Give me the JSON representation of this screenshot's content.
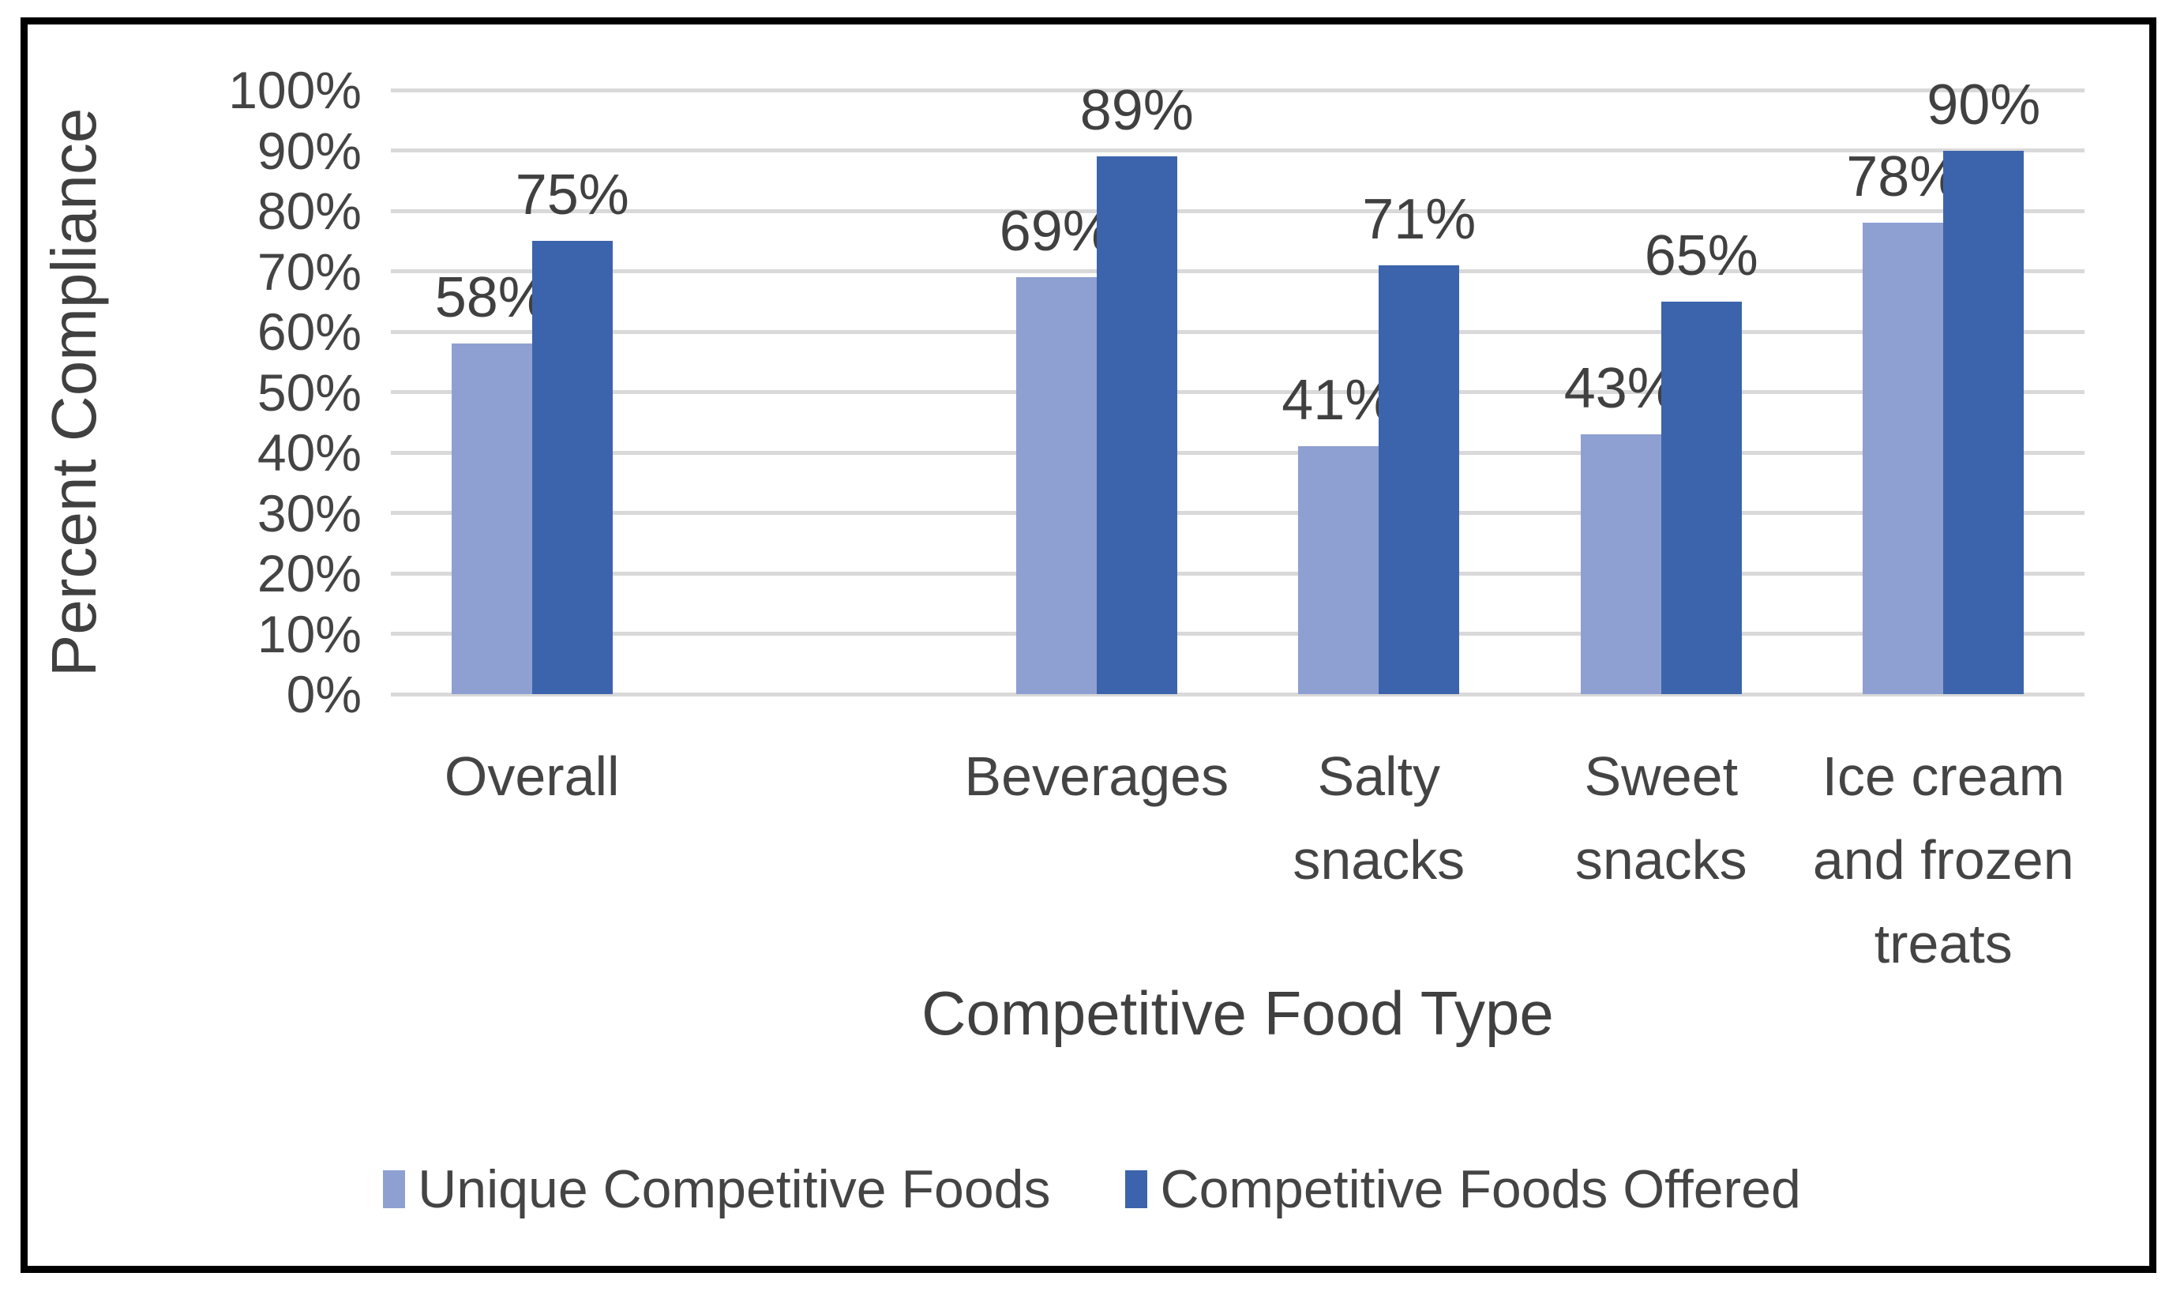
{
  "frame": {
    "background": "#FFFFFF",
    "border_color": "#000000"
  },
  "chart_data": {
    "type": "bar",
    "title": "",
    "xlabel": "Competitive Food Type",
    "ylabel": "Percent Compliance",
    "ylim": [
      0,
      100
    ],
    "ytick_step": 10,
    "ytick_labels": [
      "0%",
      "10%",
      "20%",
      "30%",
      "40%",
      "50%",
      "60%",
      "70%",
      "80%",
      "90%",
      "100%"
    ],
    "grid": true,
    "gridline_color": "#D9D9D9",
    "text_color": "#404040",
    "legend_position": "bottom",
    "slot_count": 6,
    "categories": [
      {
        "label": "Overall",
        "lines": [
          "Overall"
        ],
        "slot": 0
      },
      {
        "label": "Beverages",
        "lines": [
          "Beverages"
        ],
        "slot": 2
      },
      {
        "label": "Salty snacks",
        "lines": [
          "Salty",
          "snacks"
        ],
        "slot": 3
      },
      {
        "label": "Sweet snacks",
        "lines": [
          "Sweet",
          "snacks"
        ],
        "slot": 4
      },
      {
        "label": "Ice cream and frozen treats",
        "lines": [
          "Ice cream",
          "and frozen",
          "treats"
        ],
        "slot": 5
      }
    ],
    "series": [
      {
        "name": "Unique Competitive Foods",
        "color": "#8EA0D2",
        "values": [
          58,
          69,
          41,
          43,
          78
        ],
        "data_labels": [
          "58%",
          "69%",
          "41%",
          "43%",
          "78%"
        ]
      },
      {
        "name": "Competitive Foods Offered",
        "color": "#3C64AC",
        "values": [
          75,
          89,
          71,
          65,
          90
        ],
        "data_labels": [
          "75%",
          "89%",
          "71%",
          "65%",
          "90%"
        ]
      }
    ]
  }
}
